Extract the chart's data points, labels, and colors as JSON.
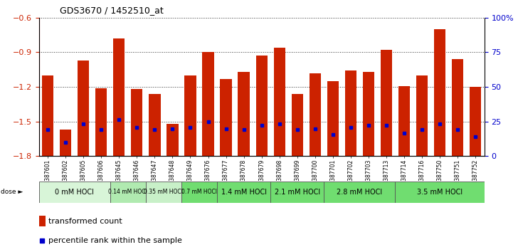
{
  "title": "GDS3670 / 1452510_at",
  "samples": [
    "GSM387601",
    "GSM387602",
    "GSM387605",
    "GSM387606",
    "GSM387645",
    "GSM387646",
    "GSM387647",
    "GSM387648",
    "GSM387649",
    "GSM387676",
    "GSM387677",
    "GSM387678",
    "GSM387679",
    "GSM387698",
    "GSM387699",
    "GSM387700",
    "GSM387701",
    "GSM387702",
    "GSM387703",
    "GSM387713",
    "GSM387714",
    "GSM387716",
    "GSM387750",
    "GSM387751",
    "GSM387752"
  ],
  "bar_values": [
    -1.1,
    -1.57,
    -0.97,
    -1.21,
    -0.78,
    -1.22,
    -1.26,
    -1.52,
    -1.1,
    -0.9,
    -1.13,
    -1.07,
    -0.93,
    -0.86,
    -1.26,
    -1.08,
    -1.15,
    -1.06,
    -1.07,
    -0.88,
    -1.19,
    -1.1,
    -0.7,
    -0.96,
    -1.2
  ],
  "percentile_values": [
    -1.57,
    -1.68,
    -1.52,
    -1.57,
    -1.48,
    -1.55,
    -1.57,
    -1.56,
    -1.55,
    -1.5,
    -1.56,
    -1.57,
    -1.53,
    -1.52,
    -1.57,
    -1.56,
    -1.61,
    -1.55,
    -1.53,
    -1.53,
    -1.6,
    -1.57,
    -1.52,
    -1.57,
    -1.63
  ],
  "dose_groups": [
    {
      "label": "0 mM HOCl",
      "start": 0,
      "end": 4,
      "color": "#d8f5d8"
    },
    {
      "label": "0.14 mM HOCl",
      "start": 4,
      "end": 6,
      "color": "#b0eab0"
    },
    {
      "label": "0.35 mM HOCl",
      "start": 6,
      "end": 8,
      "color": "#c8f0c8"
    },
    {
      "label": "0.7 mM HOCl",
      "start": 8,
      "end": 10,
      "color": "#70dd70"
    },
    {
      "label": "1.4 mM HOCl",
      "start": 10,
      "end": 13,
      "color": "#70dd70"
    },
    {
      "label": "2.1 mM HOCl",
      "start": 13,
      "end": 16,
      "color": "#70dd70"
    },
    {
      "label": "2.8 mM HOCl",
      "start": 16,
      "end": 20,
      "color": "#70dd70"
    },
    {
      "label": "3.5 mM HOCl",
      "start": 20,
      "end": 25,
      "color": "#70dd70"
    }
  ],
  "bar_color": "#cc2200",
  "dot_color": "#0000cc",
  "ylim_left": [
    -1.8,
    -0.6
  ],
  "yticks_left": [
    -1.8,
    -1.5,
    -1.2,
    -0.9,
    -0.6
  ],
  "ylim_right": [
    0,
    100
  ],
  "yticks_right": [
    0,
    25,
    50,
    75,
    100
  ],
  "background_color": "#ffffff",
  "title_color": "#000000",
  "left_tick_color": "#cc2200",
  "right_tick_color": "#0000cc",
  "dose_label_color": "#000000",
  "xlabel_bg_color": "#c8c8c8"
}
